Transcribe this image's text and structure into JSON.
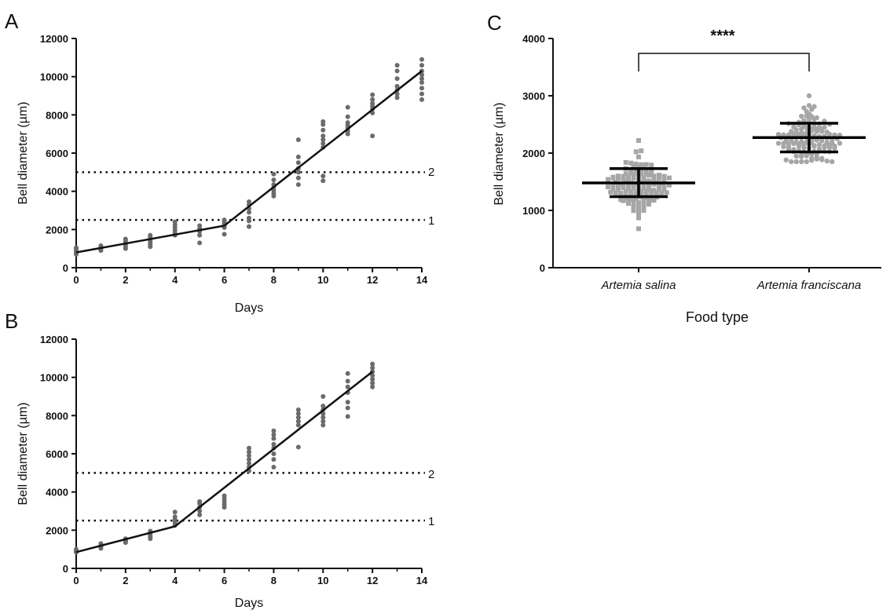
{
  "chart_data": [
    {
      "panel": "A",
      "type": "scatter",
      "xlabel": "Days",
      "ylabel": "Bell diameter (µm)",
      "xlim": [
        0,
        14
      ],
      "ylim": [
        0,
        12000
      ],
      "xticks": [
        "0",
        "2",
        "4",
        "6",
        "8",
        "10",
        "12",
        "14"
      ],
      "yticks": [
        "0",
        "2000",
        "4000",
        "6000",
        "8000",
        "10000",
        "12000"
      ],
      "points": [
        [
          0,
          700
        ],
        [
          0,
          800
        ],
        [
          0,
          900
        ],
        [
          0,
          1000
        ],
        [
          0,
          1050
        ],
        [
          1,
          900
        ],
        [
          1,
          1000
        ],
        [
          1,
          1050
        ],
        [
          1,
          1100
        ],
        [
          1,
          1150
        ],
        [
          2,
          1000
        ],
        [
          2,
          1100
        ],
        [
          2,
          1200
        ],
        [
          2,
          1300
        ],
        [
          2,
          1400
        ],
        [
          2,
          1500
        ],
        [
          3,
          1100
        ],
        [
          3,
          1200
        ],
        [
          3,
          1300
        ],
        [
          3,
          1400
        ],
        [
          3,
          1500
        ],
        [
          3,
          1600
        ],
        [
          3,
          1700
        ],
        [
          4,
          1700
        ],
        [
          4,
          1800
        ],
        [
          4,
          1950
        ],
        [
          4,
          2100
        ],
        [
          4,
          2250
        ],
        [
          4,
          2400
        ],
        [
          5,
          1300
        ],
        [
          5,
          1700
        ],
        [
          5,
          1900
        ],
        [
          5,
          2050
        ],
        [
          5,
          2200
        ],
        [
          6,
          1750
        ],
        [
          6,
          2100
        ],
        [
          6,
          2200
        ],
        [
          6,
          2300
        ],
        [
          6,
          2400
        ],
        [
          6,
          2500
        ],
        [
          7,
          2150
        ],
        [
          7,
          2450
        ],
        [
          7,
          2600
        ],
        [
          7,
          2900
        ],
        [
          7,
          3100
        ],
        [
          7,
          3300
        ],
        [
          7,
          3450
        ],
        [
          8,
          3750
        ],
        [
          8,
          3900
        ],
        [
          8,
          4050
        ],
        [
          8,
          4200
        ],
        [
          8,
          4350
        ],
        [
          8,
          4600
        ],
        [
          8,
          4900
        ],
        [
          9,
          4350
        ],
        [
          9,
          4700
        ],
        [
          9,
          5000
        ],
        [
          9,
          5200
        ],
        [
          9,
          5500
        ],
        [
          9,
          5800
        ],
        [
          9,
          6700
        ],
        [
          10,
          4550
        ],
        [
          10,
          4800
        ],
        [
          10,
          6300
        ],
        [
          10,
          6500
        ],
        [
          10,
          6700
        ],
        [
          10,
          6900
        ],
        [
          10,
          7200
        ],
        [
          10,
          7500
        ],
        [
          10,
          7650
        ],
        [
          11,
          7000
        ],
        [
          11,
          7150
        ],
        [
          11,
          7300
        ],
        [
          11,
          7450
        ],
        [
          11,
          7600
        ],
        [
          11,
          7900
        ],
        [
          11,
          8400
        ],
        [
          12,
          6900
        ],
        [
          12,
          8100
        ],
        [
          12,
          8300
        ],
        [
          12,
          8450
        ],
        [
          12,
          8600
        ],
        [
          12,
          8800
        ],
        [
          12,
          9050
        ],
        [
          13,
          8900
        ],
        [
          13,
          9100
        ],
        [
          13,
          9300
        ],
        [
          13,
          9500
        ],
        [
          13,
          9900
        ],
        [
          13,
          10300
        ],
        [
          13,
          10600
        ],
        [
          14,
          8800
        ],
        [
          14,
          9100
        ],
        [
          14,
          9400
        ],
        [
          14,
          9700
        ],
        [
          14,
          9900
        ],
        [
          14,
          10100
        ],
        [
          14,
          10300
        ],
        [
          14,
          10600
        ],
        [
          14,
          10900
        ]
      ],
      "fit_line": [
        [
          0,
          800
        ],
        [
          6,
          2200
        ],
        [
          14,
          10300
        ]
      ],
      "reference_lines": [
        {
          "y": 2500,
          "label": "1"
        },
        {
          "y": 5000,
          "label": "2"
        }
      ]
    },
    {
      "panel": "B",
      "type": "scatter",
      "xlabel": "Days",
      "ylabel": "Bell diameter (µm)",
      "xlim": [
        0,
        14
      ],
      "ylim": [
        0,
        12000
      ],
      "xticks": [
        "0",
        "2",
        "4",
        "6",
        "8",
        "10",
        "12",
        "14"
      ],
      "yticks": [
        "0",
        "2000",
        "4000",
        "6000",
        "8000",
        "10000",
        "12000"
      ],
      "points": [
        [
          0,
          850
        ],
        [
          0,
          900
        ],
        [
          0,
          950
        ],
        [
          0,
          1000
        ],
        [
          1,
          1050
        ],
        [
          1,
          1100
        ],
        [
          1,
          1150
        ],
        [
          1,
          1200
        ],
        [
          1,
          1300
        ],
        [
          2,
          1350
        ],
        [
          2,
          1400
        ],
        [
          2,
          1450
        ],
        [
          2,
          1500
        ],
        [
          2,
          1550
        ],
        [
          3,
          1550
        ],
        [
          3,
          1650
        ],
        [
          3,
          1750
        ],
        [
          3,
          1850
        ],
        [
          3,
          1950
        ],
        [
          4,
          2250
        ],
        [
          4,
          2400
        ],
        [
          4,
          2550
        ],
        [
          4,
          2700
        ],
        [
          4,
          2950
        ],
        [
          5,
          2800
        ],
        [
          5,
          3000
        ],
        [
          5,
          3200
        ],
        [
          5,
          3400
        ],
        [
          5,
          3500
        ],
        [
          6,
          3200
        ],
        [
          6,
          3350
        ],
        [
          6,
          3500
        ],
        [
          6,
          3650
        ],
        [
          6,
          3800
        ],
        [
          7,
          5100
        ],
        [
          7,
          5300
        ],
        [
          7,
          5500
        ],
        [
          7,
          5700
        ],
        [
          7,
          5900
        ],
        [
          7,
          6100
        ],
        [
          7,
          6300
        ],
        [
          8,
          5300
        ],
        [
          8,
          5700
        ],
        [
          8,
          6000
        ],
        [
          8,
          6300
        ],
        [
          8,
          6500
        ],
        [
          8,
          6800
        ],
        [
          8,
          7000
        ],
        [
          8,
          7200
        ],
        [
          9,
          6350
        ],
        [
          9,
          7500
        ],
        [
          9,
          7700
        ],
        [
          9,
          7900
        ],
        [
          9,
          8100
        ],
        [
          9,
          8300
        ],
        [
          10,
          7500
        ],
        [
          10,
          7700
        ],
        [
          10,
          7900
        ],
        [
          10,
          8100
        ],
        [
          10,
          8300
        ],
        [
          10,
          8500
        ],
        [
          10,
          9000
        ],
        [
          11,
          7950
        ],
        [
          11,
          8400
        ],
        [
          11,
          8700
        ],
        [
          11,
          9200
        ],
        [
          11,
          9500
        ],
        [
          11,
          9800
        ],
        [
          11,
          10200
        ],
        [
          12,
          9500
        ],
        [
          12,
          9700
        ],
        [
          12,
          9900
        ],
        [
          12,
          10100
        ],
        [
          12,
          10300
        ],
        [
          12,
          10500
        ],
        [
          12,
          10700
        ]
      ],
      "fit_line": [
        [
          0,
          850
        ],
        [
          4,
          2200
        ],
        [
          12,
          10300
        ]
      ],
      "reference_lines": [
        {
          "y": 2500,
          "label": "1"
        },
        {
          "y": 5000,
          "label": "2"
        }
      ]
    },
    {
      "panel": "C",
      "type": "scatter",
      "xlabel": "Food type",
      "ylabel": "Bell diameter (µm)",
      "ylim": [
        0,
        4000
      ],
      "yticks": [
        "0",
        "1000",
        "2000",
        "3000",
        "4000"
      ],
      "categories": [
        "Artemia salina",
        "Artemia franciscana"
      ],
      "summary": [
        {
          "category": "Artemia salina",
          "mean": 1480,
          "sd_low": 1240,
          "sd_high": 1730,
          "min": 680,
          "max": 2220
        },
        {
          "category": "Artemia franciscana",
          "mean": 2270,
          "sd_low": 2020,
          "sd_high": 2520,
          "min": 1850,
          "max": 3000
        }
      ],
      "significance": "****"
    }
  ],
  "labels": {
    "panel_a": "A",
    "panel_b": "B",
    "panel_c": "C",
    "ref1": "1",
    "ref2": "2"
  }
}
